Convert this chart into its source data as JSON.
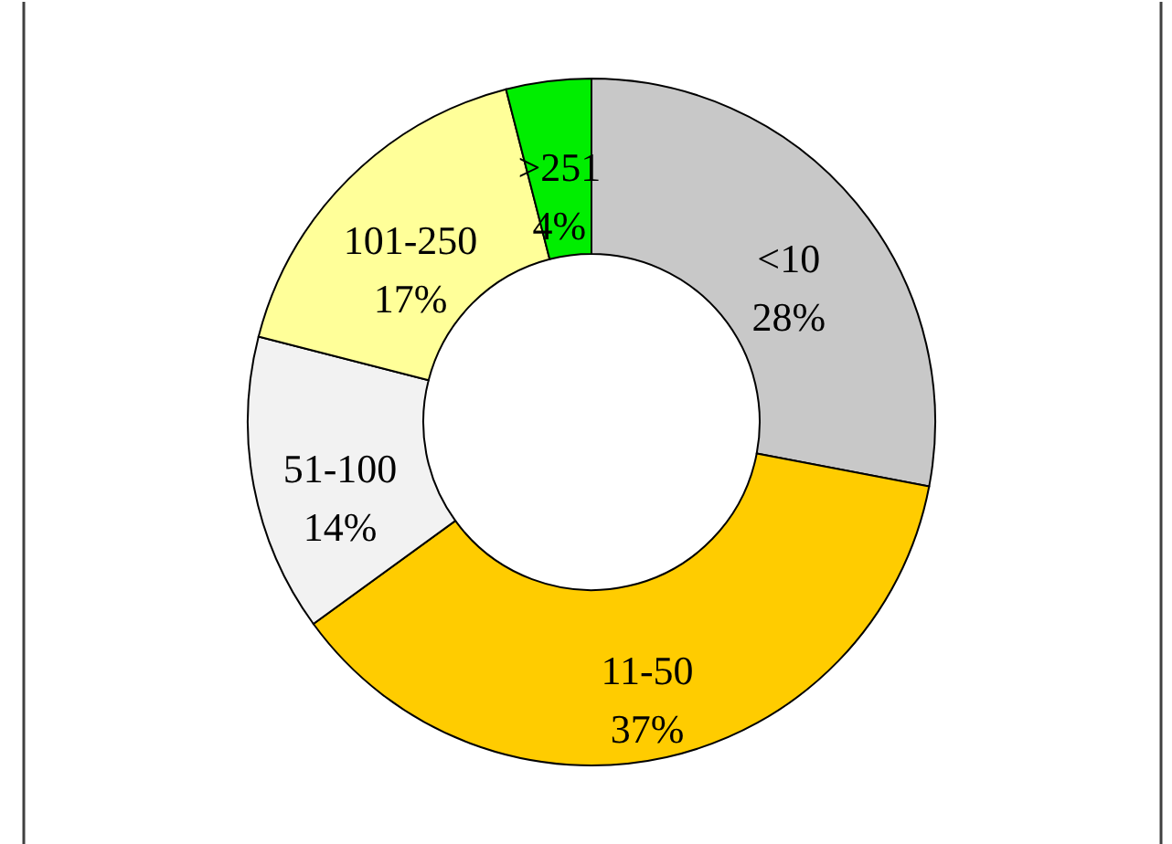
{
  "chart_data": {
    "type": "donut",
    "categories": [
      "<10",
      "11-50",
      "51-100",
      "101-250",
      ">251"
    ],
    "values": [
      28,
      37,
      14,
      17,
      4
    ],
    "colors": [
      "#c8c8c8",
      "#ffcc00",
      "#f2f2f2",
      "#ffff99",
      "#00ee00"
    ],
    "value_labels": [
      "28%",
      "37%",
      "14%",
      "17%",
      "4%"
    ]
  }
}
